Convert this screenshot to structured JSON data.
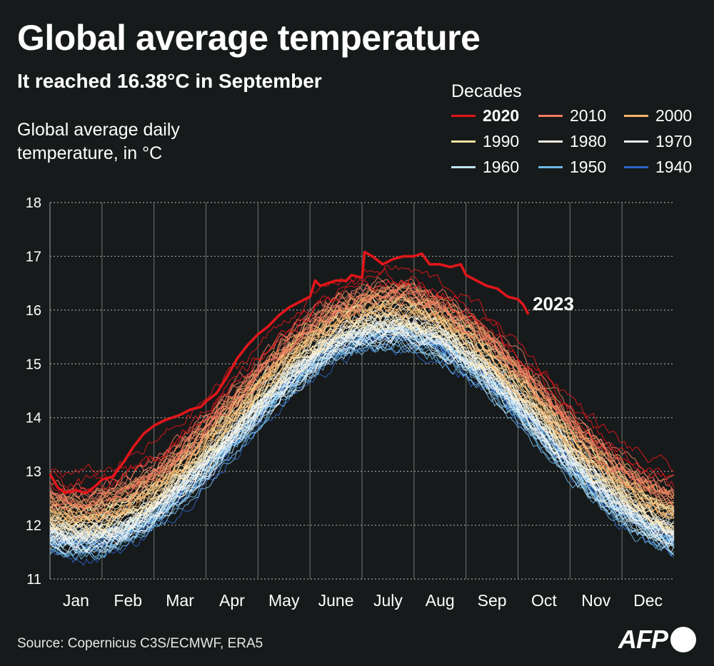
{
  "header": {
    "title": "Global average temperature",
    "subtitle": "It reached 16.38°C in September",
    "ylabel_line1": "Global average daily",
    "ylabel_line2": "temperature, in °C"
  },
  "legend": {
    "title": "Decades",
    "items": [
      {
        "label": "2020",
        "color": "#e0161b",
        "bold": true
      },
      {
        "label": "2010",
        "color": "#f07a5f"
      },
      {
        "label": "2000",
        "color": "#f7b46a"
      },
      {
        "label": "1990",
        "color": "#fbe3a4"
      },
      {
        "label": "1980",
        "color": "#fbf4e2"
      },
      {
        "label": "1970",
        "color": "#eff6fa"
      },
      {
        "label": "1960",
        "color": "#bfe4f5"
      },
      {
        "label": "1950",
        "color": "#6fb8ea"
      },
      {
        "label": "1940",
        "color": "#2d63c8"
      }
    ]
  },
  "footer": {
    "source": "Source: Copernicus C3S/ECMWF, ERA5",
    "logo": "AFP"
  },
  "chart_data": {
    "type": "line",
    "x_unit": "month",
    "categories": [
      "Jan",
      "Feb",
      "Mar",
      "Apr",
      "May",
      "June",
      "July",
      "Aug",
      "Sep",
      "Oct",
      "Nov",
      "Dec"
    ],
    "ylim": [
      11,
      18
    ],
    "yticks": [
      11,
      12,
      13,
      14,
      15,
      16,
      17,
      18
    ],
    "grid": true,
    "series_by_decade": [
      {
        "decade": "1940",
        "color": "#2d63c8",
        "jan": 11.5,
        "jul": 15.4,
        "dec": 11.5,
        "count": 6
      },
      {
        "decade": "1950",
        "color": "#6fb8ea",
        "jan": 11.6,
        "jul": 15.5,
        "dec": 11.6,
        "count": 10
      },
      {
        "decade": "1960",
        "color": "#bfe4f5",
        "jan": 11.7,
        "jul": 15.6,
        "dec": 11.7,
        "count": 10
      },
      {
        "decade": "1970",
        "color": "#eff6fa",
        "jan": 11.8,
        "jul": 15.7,
        "dec": 11.8,
        "count": 10
      },
      {
        "decade": "1980",
        "color": "#fbf4e2",
        "jan": 11.95,
        "jul": 15.85,
        "dec": 11.95,
        "count": 10
      },
      {
        "decade": "1990",
        "color": "#fbe3a4",
        "jan": 12.1,
        "jul": 16.0,
        "dec": 12.1,
        "count": 10
      },
      {
        "decade": "2000",
        "color": "#f7b46a",
        "jan": 12.3,
        "jul": 16.2,
        "dec": 12.3,
        "count": 10
      },
      {
        "decade": "2010",
        "color": "#f07a5f",
        "jan": 12.55,
        "jul": 16.4,
        "dec": 12.55,
        "count": 10
      },
      {
        "decade": "2020",
        "color": "#e0161b",
        "jan": 12.8,
        "jul": 16.6,
        "dec": 12.8,
        "count": 3
      }
    ],
    "highlight": {
      "name": "2023",
      "color": "#e0161b",
      "points": [
        [
          0.0,
          12.95
        ],
        [
          0.15,
          12.7
        ],
        [
          0.3,
          12.6
        ],
        [
          0.5,
          12.65
        ],
        [
          0.7,
          12.6
        ],
        [
          0.9,
          12.75
        ],
        [
          1.0,
          12.85
        ],
        [
          1.2,
          12.9
        ],
        [
          1.4,
          13.15
        ],
        [
          1.6,
          13.45
        ],
        [
          1.8,
          13.7
        ],
        [
          2.0,
          13.85
        ],
        [
          2.2,
          13.95
        ],
        [
          2.5,
          14.05
        ],
        [
          2.7,
          14.15
        ],
        [
          2.9,
          14.2
        ],
        [
          3.0,
          14.3
        ],
        [
          3.2,
          14.45
        ],
        [
          3.4,
          14.75
        ],
        [
          3.6,
          15.1
        ],
        [
          3.8,
          15.35
        ],
        [
          4.0,
          15.55
        ],
        [
          4.2,
          15.7
        ],
        [
          4.4,
          15.9
        ],
        [
          4.6,
          16.05
        ],
        [
          4.8,
          16.15
        ],
        [
          5.0,
          16.25
        ],
        [
          5.1,
          16.55
        ],
        [
          5.2,
          16.45
        ],
        [
          5.35,
          16.5
        ],
        [
          5.5,
          16.55
        ],
        [
          5.7,
          16.55
        ],
        [
          5.8,
          16.65
        ],
        [
          6.0,
          16.6
        ],
        [
          6.05,
          17.08
        ],
        [
          6.2,
          17.0
        ],
        [
          6.4,
          16.85
        ],
        [
          6.6,
          16.95
        ],
        [
          6.8,
          17.0
        ],
        [
          7.0,
          17.0
        ],
        [
          7.15,
          17.05
        ],
        [
          7.3,
          16.85
        ],
        [
          7.5,
          16.85
        ],
        [
          7.7,
          16.8
        ],
        [
          7.9,
          16.85
        ],
        [
          8.0,
          16.65
        ],
        [
          8.2,
          16.55
        ],
        [
          8.4,
          16.45
        ],
        [
          8.6,
          16.4
        ],
        [
          8.8,
          16.25
        ],
        [
          9.0,
          16.2
        ],
        [
          9.1,
          16.1
        ],
        [
          9.2,
          15.92
        ]
      ]
    },
    "annotation": {
      "label": "2023",
      "x": 9.2,
      "y": 15.92
    }
  }
}
